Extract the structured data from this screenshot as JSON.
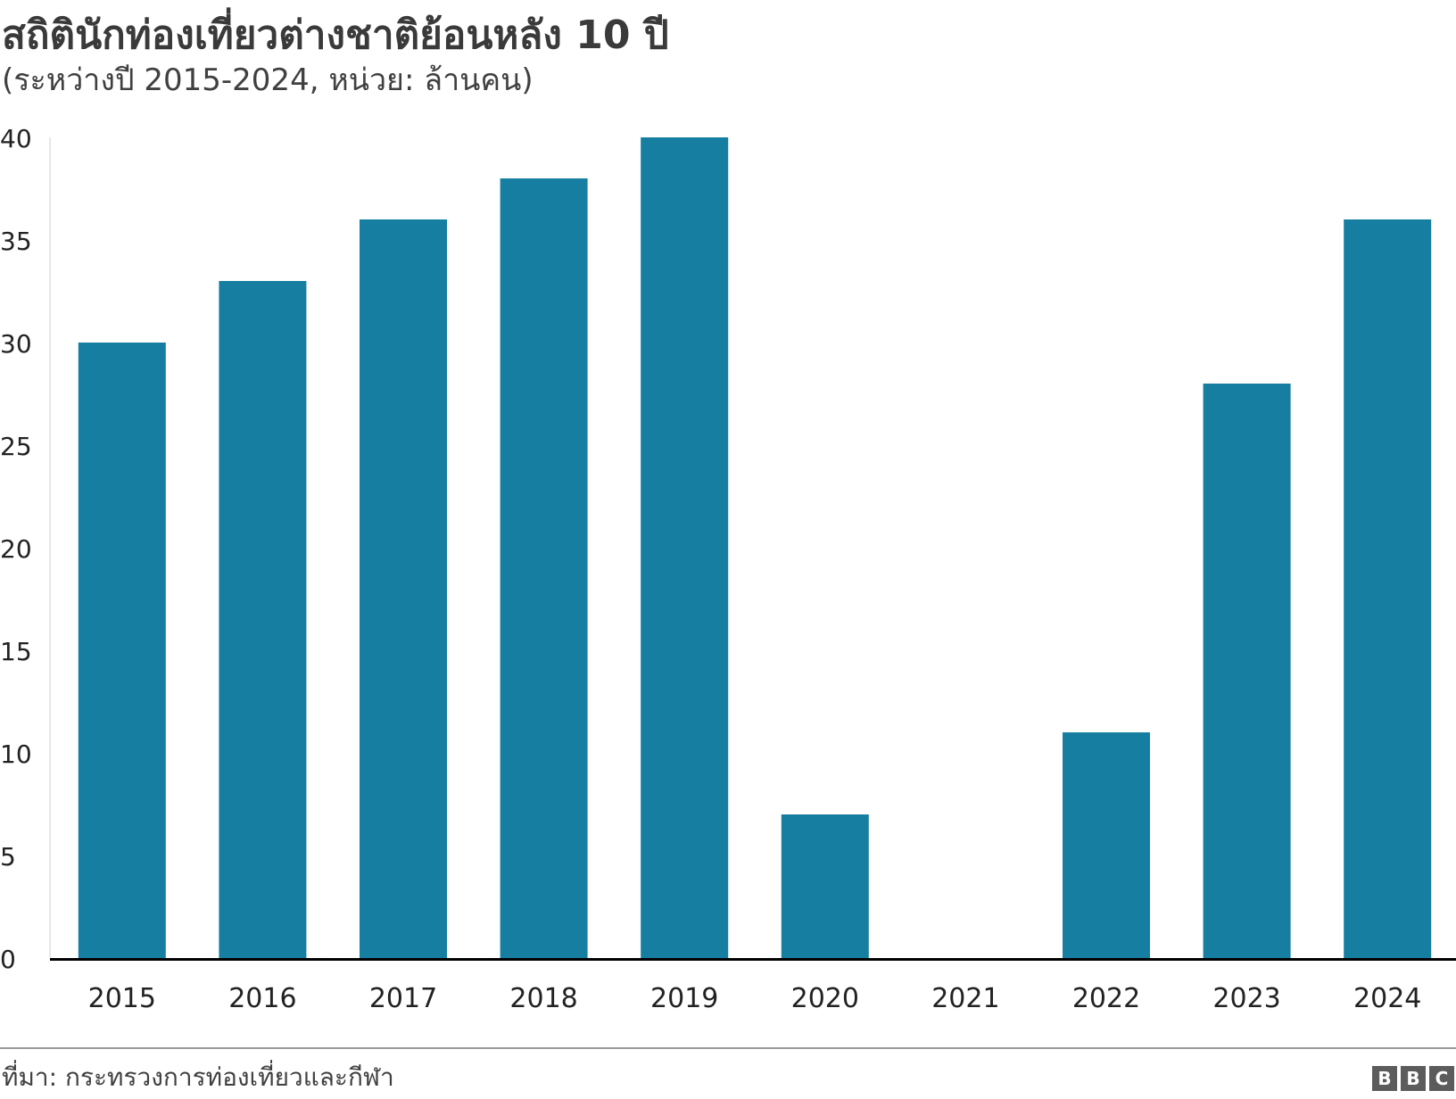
{
  "header": {
    "title": "สถิตินักท่องเที่ยวต่างชาติย้อนหลัง 10 ปี",
    "subtitle": "(ระหว่างปี 2015-2024, หน่วย: ล้านคน)"
  },
  "footer": {
    "source": "ที่มา: กระทรวงการท่องเที่ยวและกีฬา",
    "logo_letters": [
      "B",
      "B",
      "C"
    ]
  },
  "colors": {
    "bar": "#167ea1",
    "axis": "#000000",
    "text": "#222222"
  },
  "chart_data": {
    "type": "bar",
    "categories": [
      "2015",
      "2016",
      "2017",
      "2018",
      "2019",
      "2020",
      "2021",
      "2022",
      "2023",
      "2024"
    ],
    "values": [
      30,
      33,
      36,
      38,
      40,
      7,
      0,
      11,
      28,
      36
    ],
    "ylim": [
      0,
      40
    ],
    "yticks": [
      0,
      5,
      10,
      15,
      20,
      25,
      30,
      35,
      40
    ],
    "title": "สถิตินักท่องเที่ยวต่างชาติย้อนหลัง 10 ปี",
    "subtitle": "(ระหว่างปี 2015-2024, หน่วย: ล้านคน)",
    "xlabel": "",
    "ylabel": "",
    "grid": false,
    "legend": "none"
  }
}
